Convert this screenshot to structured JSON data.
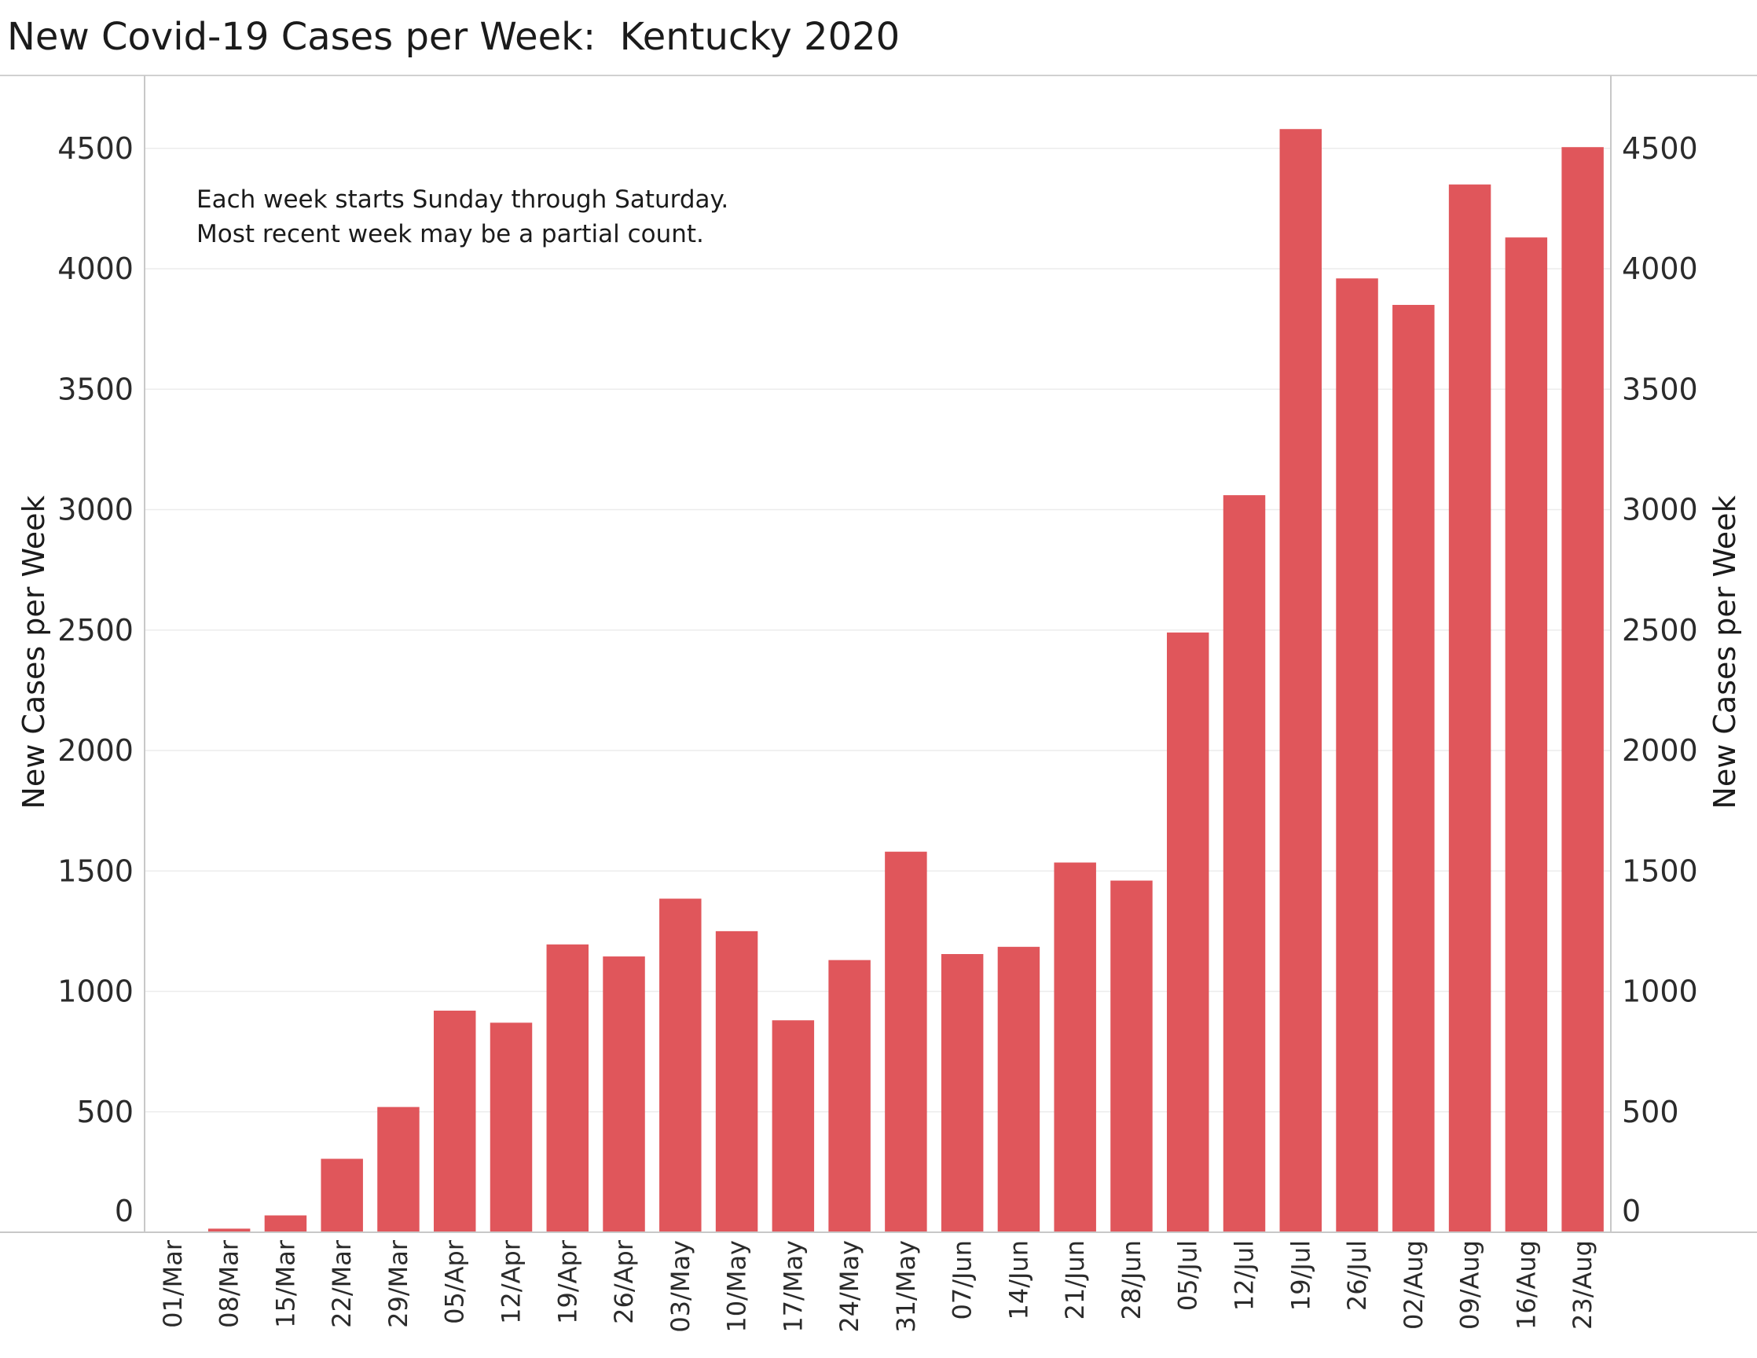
{
  "title": "New Covid-19 Cases per Week:  Kentucky 2020",
  "colors": {
    "bar": "#e0565b",
    "grid": "#ececec",
    "axis": "#c8c8c8",
    "background": "#ffffff"
  },
  "chart_data": {
    "type": "bar",
    "title": "New Covid-19 Cases per Week:  Kentucky 2020",
    "xlabel": "",
    "ylabel": "New Cases per Week",
    "ylabel_right": "New Cases per Week",
    "ylim": [
      0,
      4800
    ],
    "yticks": [
      0,
      500,
      1000,
      1500,
      2000,
      2500,
      3000,
      3500,
      4000,
      4500
    ],
    "grid": true,
    "annotation": [
      "Each week starts Sunday through Saturday.",
      "Most recent week may be a partial count."
    ],
    "categories": [
      "01/Mar",
      "08/Mar",
      "15/Mar",
      "22/Mar",
      "29/Mar",
      "05/Apr",
      "12/Apr",
      "19/Apr",
      "26/Apr",
      "03/May",
      "10/May",
      "17/May",
      "24/May",
      "31/May",
      "07/Jun",
      "14/Jun",
      "21/Jun",
      "28/Jun",
      "05/Jul",
      "12/Jul",
      "19/Jul",
      "26/Jul",
      "02/Aug",
      "09/Aug",
      "16/Aug",
      "23/Aug"
    ],
    "values": [
      0,
      15,
      70,
      305,
      520,
      920,
      870,
      1195,
      1145,
      1385,
      1250,
      880,
      1130,
      1580,
      1155,
      1185,
      1535,
      1460,
      2490,
      3060,
      4580,
      3960,
      3850,
      4350,
      4130,
      4505
    ]
  }
}
